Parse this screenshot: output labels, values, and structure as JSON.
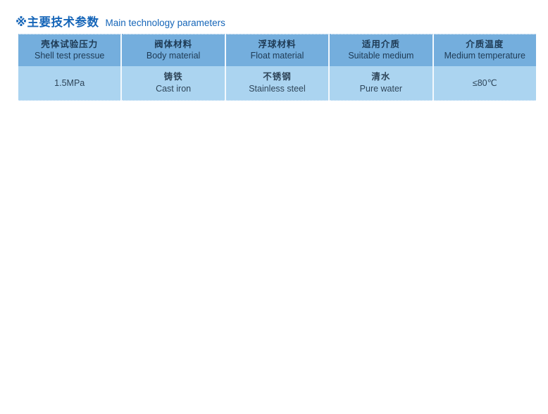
{
  "title": {
    "zh": "※主要技术参数",
    "en": "Main technology parameters"
  },
  "table": {
    "columns": [
      {
        "zh": "壳体试验压力",
        "en": "Shell test pressue"
      },
      {
        "zh": "阀体材料",
        "en": "Body material"
      },
      {
        "zh": "浮球材料",
        "en": "Float material"
      },
      {
        "zh": "适用介质",
        "en": "Suitable medium"
      },
      {
        "zh": "介质温度",
        "en": "Medium temperature"
      }
    ],
    "row": [
      {
        "value": "1.5MPa"
      },
      {
        "zh": "铸铁",
        "en": "Cast iron"
      },
      {
        "zh": "不锈钢",
        "en": "Stainless steel"
      },
      {
        "zh": "清水",
        "en": "Pure water"
      },
      {
        "value": "≤80℃"
      }
    ]
  },
  "colors": {
    "title_blue": "#1565b8",
    "header_bg": "#74aedd",
    "row_bg": "#abd4f0",
    "header_text": "#1e3a54",
    "row_text": "#2e4559",
    "divider": "#f2f8fd"
  }
}
